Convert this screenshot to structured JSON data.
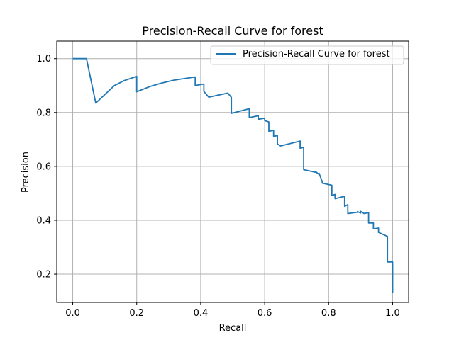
{
  "chart_data": {
    "type": "line",
    "title": "Precision-Recall Curve for forest",
    "xlabel": "Recall",
    "ylabel": "Precision",
    "xlim": [
      -0.05,
      1.05
    ],
    "ylim": [
      0.095,
      1.065
    ],
    "xticks": [
      0.0,
      0.2,
      0.4,
      0.6,
      0.8,
      1.0
    ],
    "xtick_labels": [
      "0.0",
      "0.2",
      "0.4",
      "0.6",
      "0.8",
      "1.0"
    ],
    "yticks": [
      0.2,
      0.4,
      0.6,
      0.8,
      1.0
    ],
    "ytick_labels": [
      "0.2",
      "0.4",
      "0.6",
      "0.8",
      "1.0"
    ],
    "grid": true,
    "legend": "top-right",
    "series": [
      {
        "name": "Precision-Recall Curve for forest",
        "color": "#1f77b4",
        "x": [
          0.0,
          0.043,
          0.072,
          0.13,
          0.16,
          0.2,
          0.2,
          0.24,
          0.28,
          0.32,
          0.383,
          0.383,
          0.41,
          0.41,
          0.425,
          0.485,
          0.496,
          0.496,
          0.552,
          0.552,
          0.58,
          0.58,
          0.6,
          0.6,
          0.613,
          0.613,
          0.628,
          0.628,
          0.64,
          0.64,
          0.65,
          0.711,
          0.711,
          0.722,
          0.722,
          0.76,
          0.76,
          0.77,
          0.77,
          0.78,
          0.78,
          0.81,
          0.81,
          0.82,
          0.82,
          0.85,
          0.85,
          0.86,
          0.86,
          0.89,
          0.89,
          0.9,
          0.9,
          0.91,
          0.91,
          0.925,
          0.925,
          0.94,
          0.94,
          0.956,
          0.956,
          0.984,
          0.984,
          1.0,
          1.0
        ],
        "y": [
          1.0,
          1.0,
          0.835,
          0.9,
          0.918,
          0.934,
          0.877,
          0.896,
          0.91,
          0.921,
          0.932,
          0.9,
          0.906,
          0.878,
          0.857,
          0.872,
          0.856,
          0.797,
          0.814,
          0.781,
          0.788,
          0.775,
          0.779,
          0.77,
          0.765,
          0.73,
          0.734,
          0.712,
          0.714,
          0.683,
          0.676,
          0.694,
          0.667,
          0.671,
          0.588,
          0.578,
          0.58,
          0.57,
          0.575,
          0.543,
          0.538,
          0.53,
          0.492,
          0.496,
          0.48,
          0.489,
          0.452,
          0.458,
          0.425,
          0.43,
          0.432,
          0.427,
          0.433,
          0.426,
          0.425,
          0.428,
          0.39,
          0.39,
          0.368,
          0.371,
          0.355,
          0.34,
          0.245,
          0.245,
          0.13
        ]
      }
    ]
  }
}
